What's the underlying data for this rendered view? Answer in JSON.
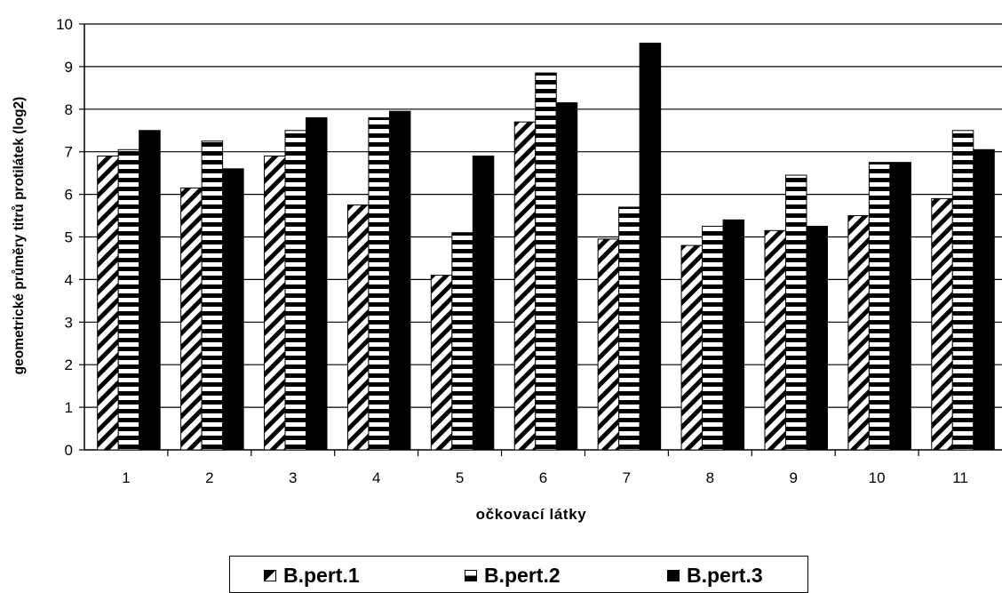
{
  "chart_data": {
    "type": "bar",
    "title": "",
    "xlabel": "očkovací látky",
    "ylabel": "geometrické průměry titrů protilátek (log2)",
    "ylim": [
      0,
      10
    ],
    "yticks": [
      "0",
      "1",
      "2",
      "3",
      "4",
      "5",
      "6",
      "7",
      "8",
      "9",
      "10"
    ],
    "grid": true,
    "legend_position": "bottom",
    "categories": [
      "1",
      "2",
      "3",
      "4",
      "5",
      "6",
      "7",
      "8",
      "9",
      "10",
      "11"
    ],
    "series": [
      {
        "name": "B.pert.1",
        "pattern": "diagonal-stripes",
        "color": "#000000",
        "values": [
          6.9,
          6.15,
          6.9,
          5.75,
          4.1,
          7.7,
          4.95,
          4.8,
          5.15,
          5.5,
          5.9
        ]
      },
      {
        "name": "B.pert.2",
        "pattern": "horizontal-stripes",
        "color": "#000000",
        "values": [
          7.05,
          7.25,
          7.5,
          7.8,
          5.1,
          8.85,
          5.7,
          5.25,
          6.45,
          6.75,
          7.5
        ]
      },
      {
        "name": "B.pert.3",
        "pattern": "solid",
        "color": "#000000",
        "values": [
          7.5,
          6.6,
          7.8,
          7.95,
          6.9,
          8.15,
          9.55,
          5.4,
          5.25,
          6.75,
          7.05
        ]
      }
    ]
  }
}
